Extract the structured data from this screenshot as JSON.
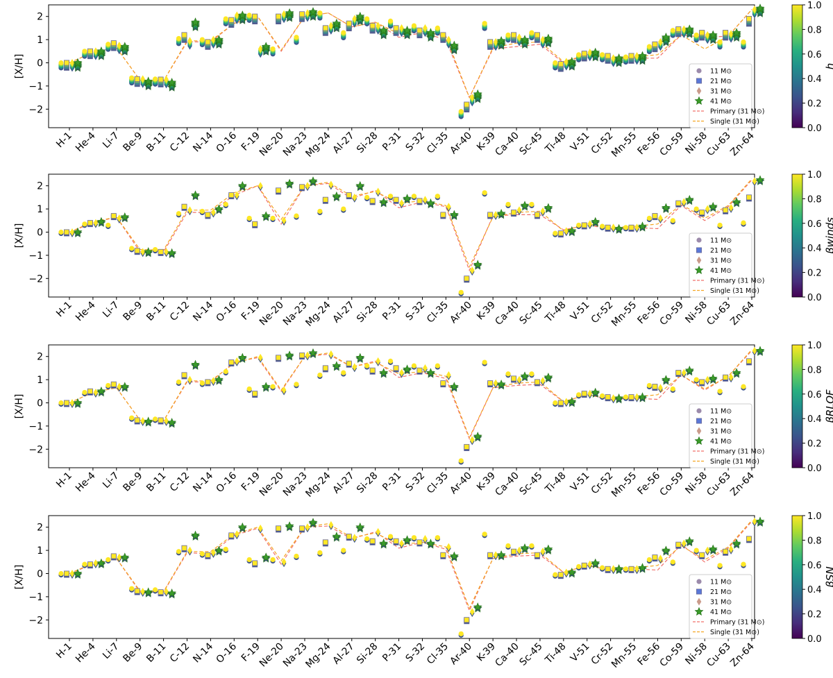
{
  "chart_data": {
    "type": "scatter",
    "categories": [
      "H-1",
      "He-4",
      "Li-7",
      "Be-9",
      "B-11",
      "C-12",
      "N-14",
      "O-16",
      "F-19",
      "Ne-20",
      "Na-23",
      "Mg-24",
      "Al-27",
      "Si-28",
      "P-31",
      "S-32",
      "Cl-35",
      "Ar-40",
      "K-39",
      "Ca-40",
      "Sc-45",
      "Ti-48",
      "V-51",
      "Cr-52",
      "Mn-55",
      "Fe-56",
      "Co-59",
      "Ni-58",
      "Cu-63",
      "Zn-64"
    ],
    "ylabel": "[X/H]",
    "ylim": [
      -2.8,
      2.5
    ],
    "yticks": [
      -2,
      -1,
      0,
      1,
      2
    ],
    "colormap": "viridis",
    "colorbar_ticks": [
      "0.0",
      "0.2",
      "0.4",
      "0.6",
      "0.8",
      "1.0"
    ],
    "legend": [
      "11 M⊙",
      "21 M⊙",
      "31 M⊙",
      "41 M⊙",
      "Primary (31 M⊙)",
      "Single (31 M⊙)"
    ],
    "markers": {
      "11": "circle",
      "21": "square",
      "31": "diamond",
      "41": "star"
    },
    "line_colors": {
      "primary": "#f0706a",
      "single": "#f5a623"
    },
    "single_31": [
      0.0,
      0.45,
      0.65,
      -0.75,
      -0.78,
      0.95,
      0.95,
      1.7,
      2.0,
      0.55,
      2.0,
      2.15,
      1.55,
      1.75,
      1.25,
      1.35,
      1.15,
      -1.5,
      0.65,
      0.85,
      0.9,
      0.05,
      0.35,
      0.2,
      0.25,
      0.35,
      1.2,
      0.6,
      1.15,
      2.3
    ],
    "panels": [
      {
        "colorbar_label": "h",
        "primary_31": [
          0.0,
          0.45,
          0.65,
          -0.75,
          -0.78,
          0.9,
          0.9,
          1.7,
          2.0,
          0.5,
          2.0,
          2.15,
          1.55,
          1.75,
          1.1,
          1.3,
          1.0,
          -1.5,
          0.6,
          0.7,
          0.8,
          0.0,
          0.35,
          0.15,
          0.2,
          0.2,
          1.2,
          1.1,
          1.15,
          2.3
        ],
        "series": [
          {
            "mass": "11",
            "values": [
              0.0,
              0.5,
              0.8,
              -0.65,
              -0.7,
              1.05,
              1.0,
              1.9,
              2.05,
              0.6,
              1.1,
              2.15,
              1.3,
              1.9,
              1.8,
              1.6,
              1.5,
              -2.1,
              1.7,
              1.2,
              1.3,
              0.0,
              0.35,
              0.35,
              0.25,
              0.7,
              1.4,
              1.2,
              0.9,
              0.9
            ]
          },
          {
            "mass": "21",
            "values": [
              0.0,
              0.5,
              0.85,
              -0.7,
              -0.72,
              1.2,
              0.9,
              1.85,
              2.0,
              2.0,
              2.1,
              1.5,
              1.7,
              1.6,
              1.5,
              1.4,
              1.2,
              -1.8,
              0.9,
              1.2,
              1.2,
              -0.05,
              0.4,
              0.3,
              0.3,
              0.8,
              1.45,
              1.3,
              1.3,
              1.9
            ]
          },
          {
            "mass": "31",
            "values": [
              0.0,
              0.5,
              0.75,
              -0.7,
              -0.72,
              0.95,
              1.0,
              2.05,
              0.6,
              2.1,
              2.15,
              1.6,
              1.9,
              1.6,
              1.5,
              1.5,
              1.0,
              -1.5,
              0.9,
              1.1,
              1.0,
              0.05,
              0.45,
              0.2,
              0.3,
              0.9,
              1.45,
              1.2,
              1.25,
              2.3
            ]
          },
          {
            "mass": "41",
            "values": [
              0.0,
              0.5,
              0.7,
              -0.8,
              -0.85,
              1.75,
              1.0,
              2.05,
              0.7,
              2.15,
              2.2,
              1.7,
              2.0,
              1.4,
              1.4,
              1.3,
              0.75,
              -1.35,
              0.95,
              1.0,
              1.05,
              0.05,
              0.45,
              0.2,
              0.3,
              1.1,
              1.45,
              1.2,
              1.3,
              2.35
            ]
          }
        ]
      },
      {
        "colorbar_label": "βwinds",
        "primary_31": [
          0.0,
          0.4,
          0.65,
          -0.85,
          -0.85,
          0.85,
          0.85,
          1.6,
          2.0,
          0.35,
          2.0,
          2.1,
          1.45,
          1.8,
          1.05,
          1.3,
          1.1,
          -1.65,
          0.7,
          0.75,
          0.75,
          0.1,
          0.3,
          0.15,
          0.2,
          0.15,
          1.15,
          0.5,
          1.1,
          2.25
        ],
        "series": [
          {
            "mass": "11",
            "values": [
              0.0,
              0.35,
              0.3,
              -0.7,
              -0.75,
              0.8,
              0.9,
              1.2,
              0.6,
              0.6,
              0.7,
              0.9,
              1.0,
              1.5,
              1.55,
              1.55,
              1.55,
              -2.6,
              1.7,
              1.2,
              1.2,
              -0.05,
              0.3,
              0.25,
              0.2,
              0.6,
              0.5,
              1.0,
              0.3,
              0.4
            ]
          },
          {
            "mass": "21",
            "values": [
              0.0,
              0.4,
              0.7,
              -0.8,
              -0.85,
              1.1,
              0.75,
              1.6,
              0.35,
              1.8,
              1.95,
              1.4,
              1.6,
              1.35,
              1.4,
              1.35,
              0.75,
              -2.0,
              0.75,
              0.85,
              0.75,
              -0.05,
              0.3,
              0.2,
              0.2,
              0.7,
              1.25,
              0.85,
              0.95,
              1.5
            ]
          },
          {
            "mass": "31",
            "values": [
              0.0,
              0.4,
              0.6,
              -0.85,
              -0.85,
              0.95,
              0.85,
              1.6,
              2.0,
              0.5,
              2.0,
              2.05,
              1.5,
              1.75,
              1.25,
              1.4,
              1.1,
              -1.65,
              0.75,
              0.95,
              0.9,
              0.05,
              0.35,
              0.2,
              0.2,
              0.6,
              1.3,
              1.0,
              1.05,
              2.2
            ]
          },
          {
            "mass": "41",
            "values": [
              0.0,
              0.45,
              0.65,
              -0.85,
              -0.9,
              1.6,
              1.0,
              2.0,
              0.7,
              2.1,
              2.2,
              1.55,
              2.0,
              1.3,
              1.45,
              1.25,
              0.75,
              -1.4,
              0.8,
              1.15,
              1.05,
              0.05,
              0.45,
              0.15,
              0.25,
              1.05,
              1.4,
              1.1,
              1.3,
              2.25
            ]
          }
        ]
      },
      {
        "colorbar_label": "βRLOF",
        "primary_31": [
          0.0,
          0.45,
          0.65,
          -0.75,
          -0.78,
          0.9,
          0.9,
          1.75,
          1.95,
          0.5,
          2.0,
          2.1,
          1.55,
          1.8,
          1.1,
          1.3,
          1.05,
          -1.55,
          0.65,
          0.75,
          0.8,
          0.05,
          0.35,
          0.15,
          0.2,
          0.15,
          1.2,
          0.55,
          1.15,
          2.25
        ],
        "series": [
          {
            "mass": "11",
            "values": [
              0.0,
              0.45,
              0.75,
              -0.65,
              -0.7,
              0.9,
              0.85,
              1.35,
              0.6,
              0.7,
              0.8,
              1.2,
              1.3,
              1.6,
              1.8,
              1.6,
              1.6,
              -2.5,
              1.75,
              1.25,
              1.25,
              0.0,
              0.35,
              0.3,
              0.25,
              0.75,
              0.6,
              1.0,
              0.5,
              0.7
            ]
          },
          {
            "mass": "21",
            "values": [
              0.0,
              0.5,
              0.8,
              -0.75,
              -0.75,
              1.2,
              0.9,
              1.75,
              0.4,
              1.95,
              2.05,
              1.5,
              1.7,
              1.4,
              1.5,
              1.4,
              0.85,
              -1.9,
              0.85,
              1.05,
              0.9,
              0.0,
              0.4,
              0.25,
              0.25,
              0.7,
              1.3,
              0.9,
              1.1,
              1.8
            ]
          },
          {
            "mass": "31",
            "values": [
              0.0,
              0.45,
              0.7,
              -0.78,
              -0.78,
              1.0,
              0.95,
              1.8,
              1.95,
              0.55,
              2.05,
              2.1,
              1.55,
              1.8,
              1.3,
              1.5,
              1.2,
              -1.6,
              0.85,
              1.0,
              0.95,
              0.05,
              0.4,
              0.2,
              0.25,
              0.65,
              1.3,
              1.0,
              1.1,
              2.25
            ]
          },
          {
            "mass": "41",
            "values": [
              0.0,
              0.5,
              0.7,
              -0.8,
              -0.85,
              1.65,
              1.0,
              1.95,
              0.7,
              2.05,
              2.15,
              1.6,
              1.95,
              1.3,
              1.45,
              1.3,
              0.7,
              -1.45,
              0.8,
              1.15,
              1.1,
              0.05,
              0.45,
              0.2,
              0.25,
              1.0,
              1.4,
              1.05,
              1.3,
              2.25
            ]
          }
        ]
      },
      {
        "colorbar_label": "βSN",
        "primary_31": [
          0.0,
          0.4,
          0.65,
          -0.8,
          -0.8,
          0.9,
          0.85,
          1.65,
          1.95,
          0.4,
          2.0,
          2.05,
          1.5,
          1.8,
          1.1,
          1.35,
          1.05,
          -1.6,
          0.65,
          0.75,
          0.8,
          0.05,
          0.35,
          0.15,
          0.2,
          0.15,
          1.25,
          0.5,
          1.1,
          2.25
        ],
        "series": [
          {
            "mass": "11",
            "values": [
              0.0,
              0.4,
              0.6,
              -0.65,
              -0.7,
              0.95,
              0.85,
              1.05,
              0.6,
              0.6,
              0.75,
              0.9,
              1.0,
              1.5,
              1.6,
              1.55,
              1.55,
              -2.6,
              1.7,
              1.2,
              1.2,
              -0.05,
              0.3,
              0.25,
              0.2,
              0.6,
              0.5,
              1.0,
              0.35,
              0.4
            ]
          },
          {
            "mass": "21",
            "values": [
              0.0,
              0.4,
              0.75,
              -0.75,
              -0.8,
              1.1,
              0.8,
              1.65,
              0.45,
              1.95,
              1.95,
              1.35,
              1.6,
              1.4,
              1.4,
              1.35,
              0.8,
              -2.0,
              0.8,
              0.95,
              0.8,
              -0.05,
              0.35,
              0.2,
              0.2,
              0.7,
              1.25,
              0.8,
              0.95,
              1.5
            ]
          },
          {
            "mass": "31",
            "values": [
              0.0,
              0.45,
              0.7,
              -0.78,
              -0.78,
              1.0,
              0.9,
              1.7,
              1.95,
              0.5,
              2.0,
              2.1,
              1.55,
              1.8,
              1.3,
              1.5,
              1.15,
              -1.65,
              0.8,
              1.0,
              0.95,
              0.05,
              0.4,
              0.2,
              0.2,
              0.65,
              1.3,
              1.0,
              1.05,
              2.25
            ]
          },
          {
            "mass": "41",
            "values": [
              0.0,
              0.45,
              0.7,
              -0.8,
              -0.85,
              1.65,
              1.0,
              2.0,
              0.7,
              2.05,
              2.2,
              1.6,
              2.0,
              1.3,
              1.45,
              1.3,
              0.75,
              -1.45,
              0.8,
              1.1,
              1.05,
              0.05,
              0.45,
              0.2,
              0.25,
              1.0,
              1.4,
              1.05,
              1.3,
              2.25
            ]
          }
        ]
      }
    ]
  }
}
